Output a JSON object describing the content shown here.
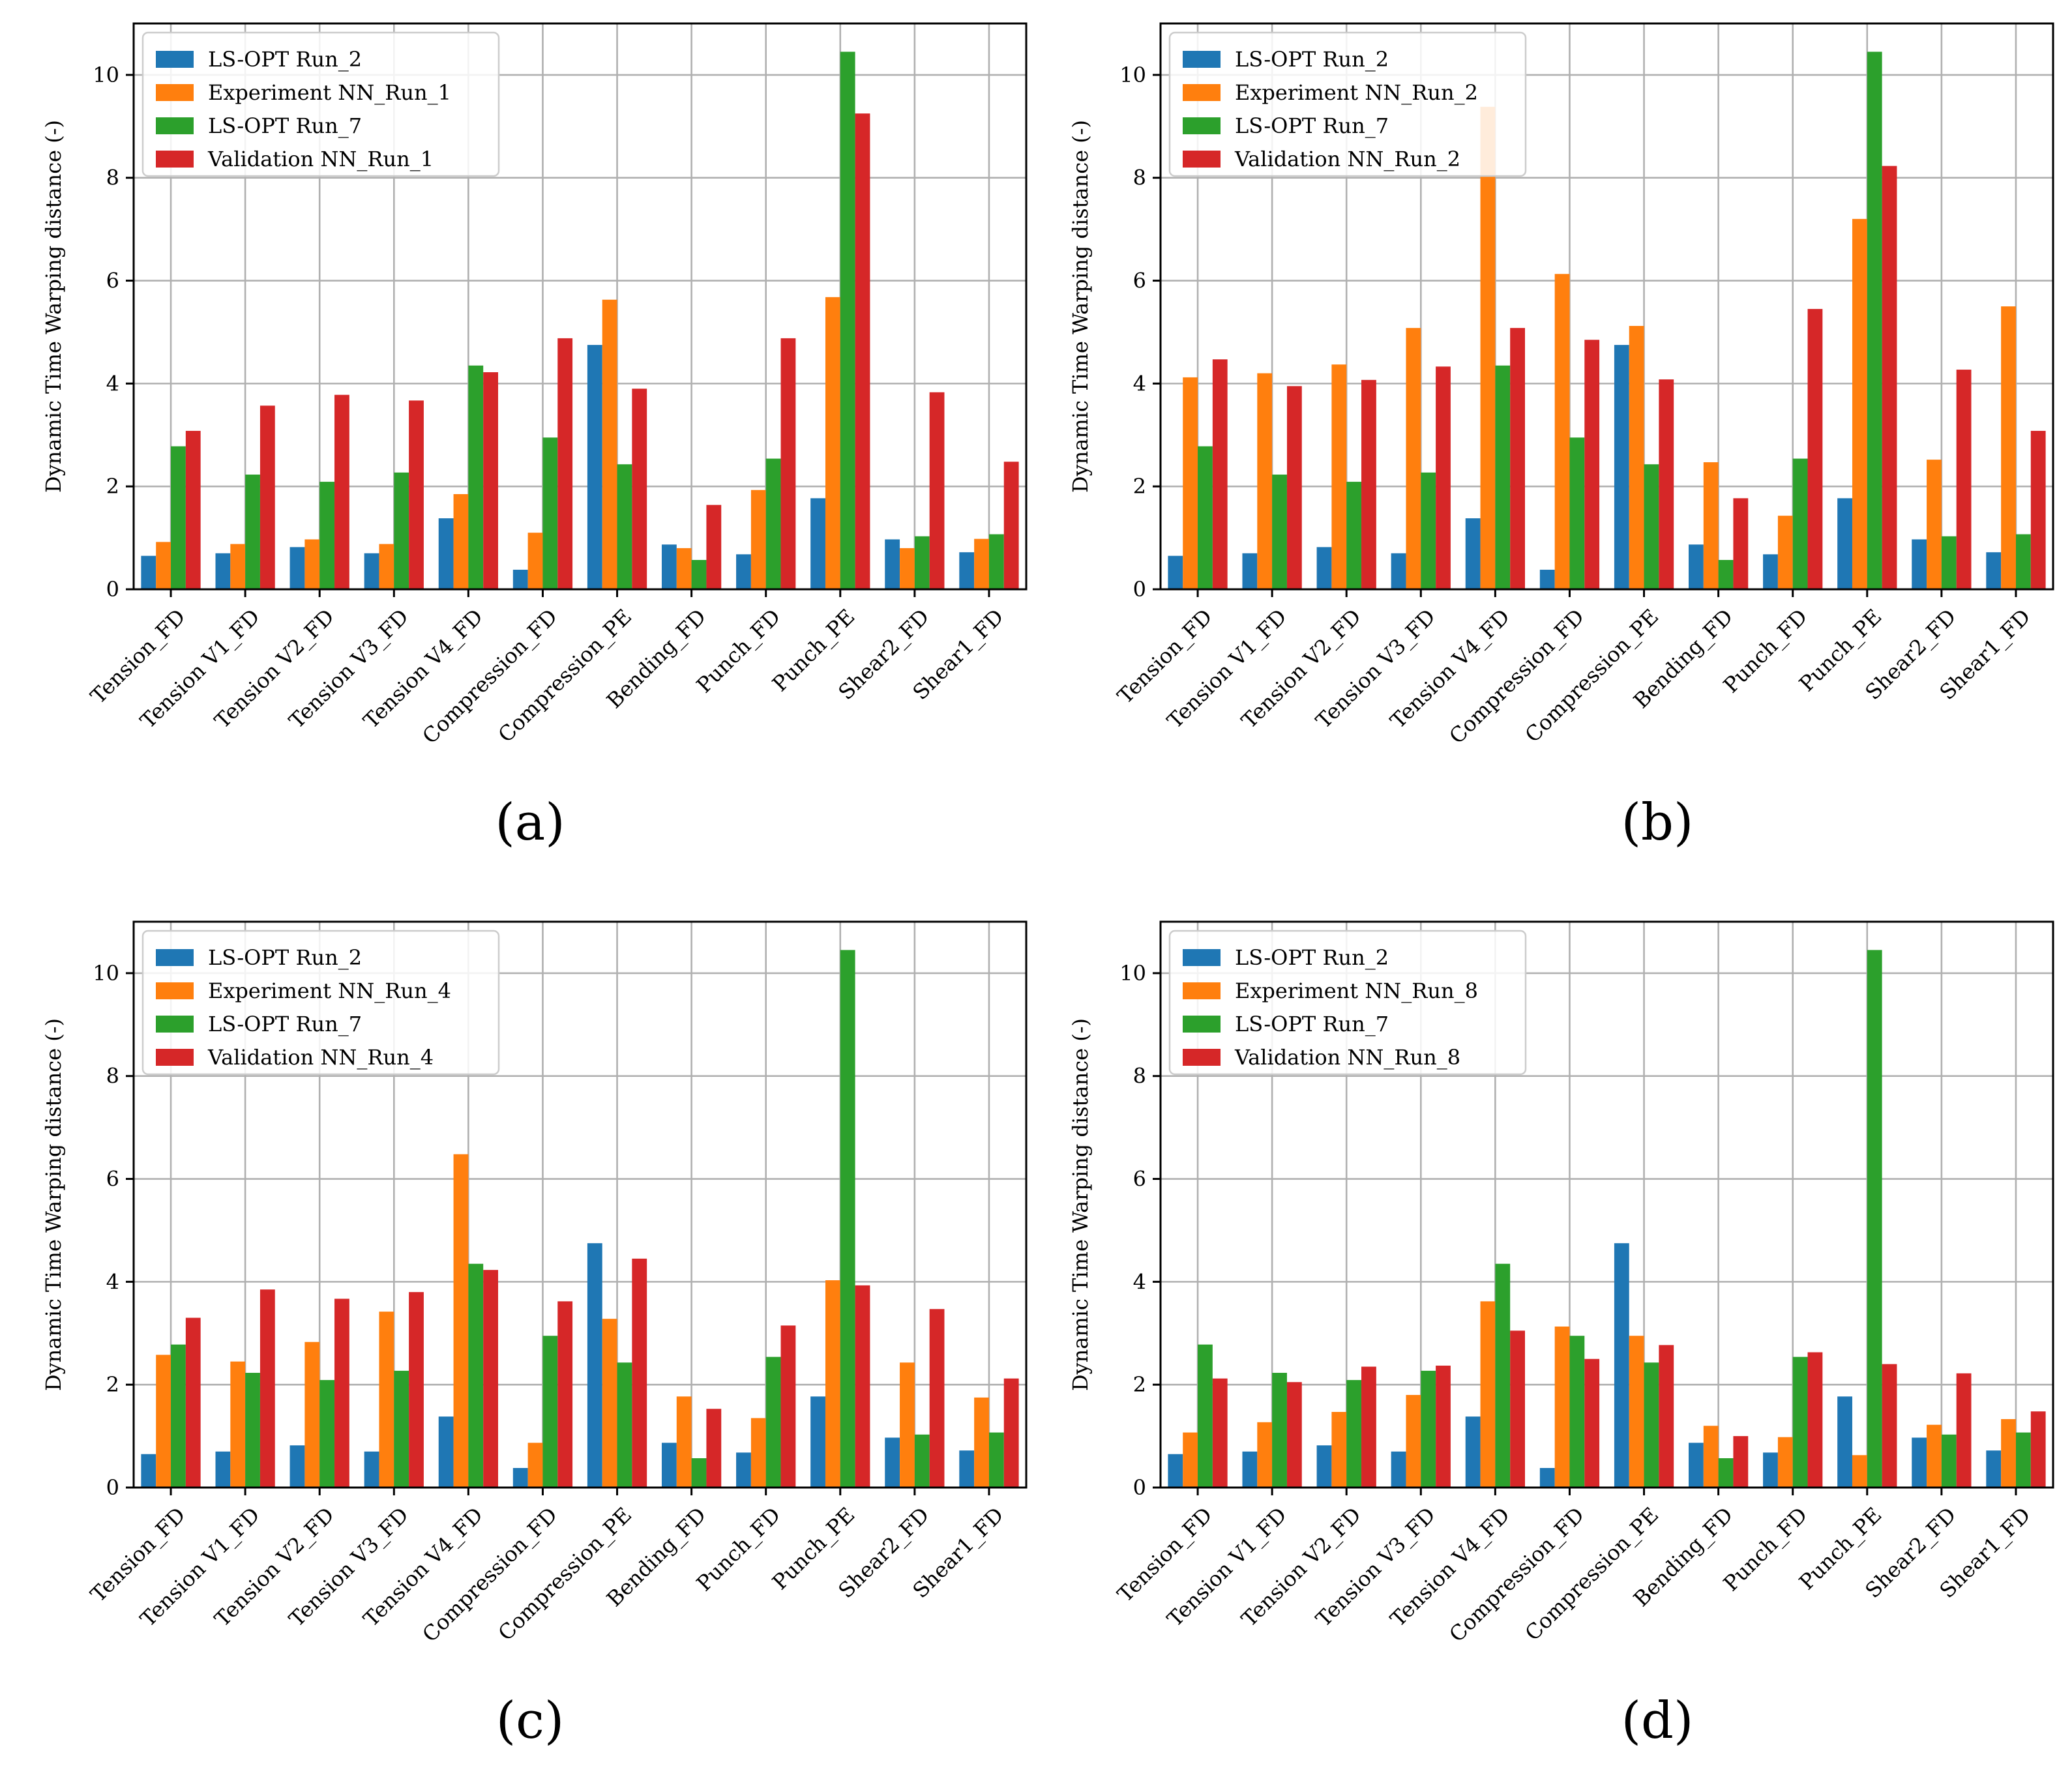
{
  "chart_data": [
    {
      "type": "bar",
      "panel_label": "(a)",
      "ylabel": "Dynamic Time Warping distance (-)",
      "xlabel": "",
      "ylim": [
        0,
        11
      ],
      "yticks": [
        0,
        2,
        4,
        6,
        8,
        10
      ],
      "grid": true,
      "legend_position": "top-left",
      "categories": [
        "Tension_FD",
        "Tension V1_FD",
        "Tension V2_FD",
        "Tension V3_FD",
        "Tension V4_FD",
        "Compression_FD",
        "Compression_PE",
        "Bending_FD",
        "Punch_FD",
        "Punch_PE",
        "Shear2_FD",
        "Shear1_FD"
      ],
      "series": [
        {
          "name": "LS-OPT Run_2",
          "color": "#1f77b4",
          "values": [
            0.65,
            0.7,
            0.82,
            0.7,
            1.38,
            0.38,
            4.75,
            0.87,
            0.68,
            1.77,
            0.97,
            0.72
          ]
        },
        {
          "name": "Experiment NN_Run_1",
          "color": "#ff7f0e",
          "values": [
            0.92,
            0.88,
            0.97,
            0.88,
            1.85,
            1.1,
            5.63,
            0.8,
            1.93,
            5.68,
            0.8,
            0.98
          ]
        },
        {
          "name": "LS-OPT Run_7",
          "color": "#2ca02c",
          "values": [
            2.78,
            2.23,
            2.09,
            2.27,
            4.35,
            2.95,
            2.43,
            0.57,
            2.54,
            10.45,
            1.03,
            1.07
          ]
        },
        {
          "name": "Validation NN_Run_1",
          "color": "#d62728",
          "values": [
            3.08,
            3.57,
            3.78,
            3.67,
            4.22,
            4.88,
            3.9,
            1.64,
            4.88,
            9.25,
            3.83,
            2.48
          ]
        }
      ]
    },
    {
      "type": "bar",
      "panel_label": "(b)",
      "ylabel": "Dynamic Time Warping distance (-)",
      "xlabel": "",
      "ylim": [
        0,
        11
      ],
      "yticks": [
        0,
        2,
        4,
        6,
        8,
        10
      ],
      "grid": true,
      "legend_position": "top-left",
      "categories": [
        "Tension_FD",
        "Tension V1_FD",
        "Tension V2_FD",
        "Tension V3_FD",
        "Tension V4_FD",
        "Compression_FD",
        "Compression_PE",
        "Bending_FD",
        "Punch_FD",
        "Punch_PE",
        "Shear2_FD",
        "Shear1_FD"
      ],
      "series": [
        {
          "name": "LS-OPT Run_2",
          "color": "#1f77b4",
          "values": [
            0.65,
            0.7,
            0.82,
            0.7,
            1.38,
            0.38,
            4.75,
            0.87,
            0.68,
            1.77,
            0.97,
            0.72
          ]
        },
        {
          "name": "Experiment NN_Run_2",
          "color": "#ff7f0e",
          "values": [
            4.12,
            4.2,
            4.37,
            5.08,
            9.38,
            6.13,
            5.12,
            2.47,
            1.43,
            7.2,
            2.52,
            5.5
          ]
        },
        {
          "name": "LS-OPT Run_7",
          "color": "#2ca02c",
          "values": [
            2.78,
            2.23,
            2.09,
            2.27,
            4.35,
            2.95,
            2.43,
            0.57,
            2.54,
            10.45,
            1.03,
            1.07
          ]
        },
        {
          "name": "Validation NN_Run_2",
          "color": "#d62728",
          "values": [
            4.47,
            3.95,
            4.07,
            4.33,
            5.08,
            4.85,
            4.08,
            1.77,
            5.45,
            8.23,
            4.27,
            3.08
          ]
        }
      ]
    },
    {
      "type": "bar",
      "panel_label": "(c)",
      "ylabel": "Dynamic Time Warping distance (-)",
      "xlabel": "",
      "ylim": [
        0,
        11
      ],
      "yticks": [
        0,
        2,
        4,
        6,
        8,
        10
      ],
      "grid": true,
      "legend_position": "top-left",
      "categories": [
        "Tension_FD",
        "Tension V1_FD",
        "Tension V2_FD",
        "Tension V3_FD",
        "Tension V4_FD",
        "Compression_FD",
        "Compression_PE",
        "Bending_FD",
        "Punch_FD",
        "Punch_PE",
        "Shear2_FD",
        "Shear1_FD"
      ],
      "series": [
        {
          "name": "LS-OPT Run_2",
          "color": "#1f77b4",
          "values": [
            0.65,
            0.7,
            0.82,
            0.7,
            1.38,
            0.38,
            4.75,
            0.87,
            0.68,
            1.77,
            0.97,
            0.72
          ]
        },
        {
          "name": "Experiment NN_Run_4",
          "color": "#ff7f0e",
          "values": [
            2.58,
            2.45,
            2.83,
            3.42,
            6.48,
            0.87,
            3.28,
            1.77,
            1.35,
            4.03,
            2.43,
            1.75
          ]
        },
        {
          "name": "LS-OPT Run_7",
          "color": "#2ca02c",
          "values": [
            2.78,
            2.23,
            2.09,
            2.27,
            4.35,
            2.95,
            2.43,
            0.57,
            2.54,
            10.45,
            1.03,
            1.07
          ]
        },
        {
          "name": "Validation NN_Run_4",
          "color": "#d62728",
          "values": [
            3.3,
            3.85,
            3.67,
            3.8,
            4.23,
            3.62,
            4.45,
            1.53,
            3.15,
            3.93,
            3.47,
            2.12
          ]
        }
      ]
    },
    {
      "type": "bar",
      "panel_label": "(d)",
      "ylabel": "Dynamic Time Warping distance (-)",
      "xlabel": "",
      "ylim": [
        0,
        11
      ],
      "yticks": [
        0,
        2,
        4,
        6,
        8,
        10
      ],
      "grid": true,
      "legend_position": "top-left",
      "categories": [
        "Tension_FD",
        "Tension V1_FD",
        "Tension V2_FD",
        "Tension V3_FD",
        "Tension V4_FD",
        "Compression_FD",
        "Compression_PE",
        "Bending_FD",
        "Punch_FD",
        "Punch_PE",
        "Shear2_FD",
        "Shear1_FD"
      ],
      "series": [
        {
          "name": "LS-OPT Run_2",
          "color": "#1f77b4",
          "values": [
            0.65,
            0.7,
            0.82,
            0.7,
            1.38,
            0.38,
            4.75,
            0.87,
            0.68,
            1.77,
            0.97,
            0.72
          ]
        },
        {
          "name": "Experiment NN_Run_8",
          "color": "#ff7f0e",
          "values": [
            1.07,
            1.27,
            1.47,
            1.8,
            3.62,
            3.13,
            2.95,
            1.2,
            0.98,
            0.63,
            1.22,
            1.33
          ]
        },
        {
          "name": "LS-OPT Run_7",
          "color": "#2ca02c",
          "values": [
            2.78,
            2.23,
            2.09,
            2.27,
            4.35,
            2.95,
            2.43,
            0.57,
            2.54,
            10.45,
            1.03,
            1.07
          ]
        },
        {
          "name": "Validation NN_Run_8",
          "color": "#d62728",
          "values": [
            2.12,
            2.05,
            2.35,
            2.37,
            3.05,
            2.5,
            2.77,
            1.0,
            2.63,
            2.4,
            2.22,
            1.48
          ]
        }
      ]
    }
  ]
}
